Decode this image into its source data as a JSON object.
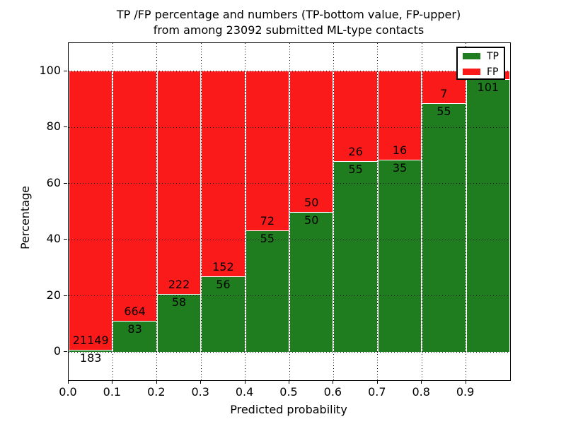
{
  "title": {
    "line1": "TP /FP percentage and numbers (TP-bottom value, FP-upper)",
    "line2": "from among 23092 submitted ML-type contacts"
  },
  "axes": {
    "xlabel": "Predicted probability",
    "ylabel": "Percentage",
    "x_tick_labels": [
      "0.0",
      "0.1",
      "0.2",
      "0.3",
      "0.4",
      "0.5",
      "0.6",
      "0.7",
      "0.8",
      "0.9"
    ],
    "y_tick_labels": [
      "0",
      "20",
      "40",
      "60",
      "80",
      "100"
    ],
    "y_tick_values": [
      0,
      20,
      40,
      60,
      80,
      100
    ]
  },
  "legend": {
    "items": [
      {
        "label": "TP",
        "color": "#1f7d1f"
      },
      {
        "label": "FP",
        "color": "#fa1a1a"
      }
    ]
  },
  "colors": {
    "tp": "#1f7d1f",
    "fp": "#fa1a1a",
    "grid": "#000000",
    "background": "#ffffff"
  },
  "chart_data": {
    "type": "bar",
    "subtype": "stacked-percentage",
    "title": "TP /FP percentage and numbers (TP-bottom value, FP-upper) from among 23092 submitted ML-type contacts",
    "xlabel": "Predicted probability",
    "ylabel": "Percentage",
    "xlim": [
      0.0,
      1.0
    ],
    "ylim": [
      -10,
      110
    ],
    "grid": true,
    "legend_position": "upper right",
    "total_contacts_shown_in_title": 23092,
    "categories": [
      "0.0-0.1",
      "0.1-0.2",
      "0.2-0.3",
      "0.3-0.4",
      "0.4-0.5",
      "0.5-0.6",
      "0.6-0.7",
      "0.7-0.8",
      "0.8-0.9",
      "0.9-1.0"
    ],
    "series": [
      {
        "name": "TP",
        "color": "#1f7d1f",
        "counts": [
          183,
          83,
          58,
          56,
          55,
          50,
          55,
          35,
          55,
          101
        ]
      },
      {
        "name": "FP",
        "color": "#fa1a1a",
        "counts": [
          21149,
          664,
          222,
          152,
          72,
          50,
          26,
          16,
          7,
          null
        ]
      }
    ],
    "tp_percent": [
      0.9,
      11.1,
      20.7,
      26.9,
      43.3,
      50.0,
      67.9,
      68.6,
      88.7,
      97.1
    ]
  }
}
